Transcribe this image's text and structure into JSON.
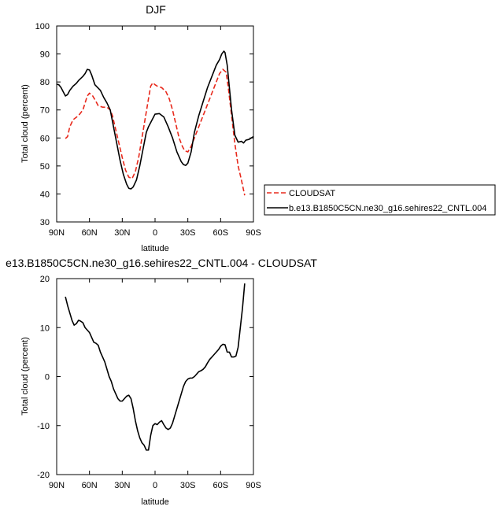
{
  "chart_data": [
    {
      "type": "line",
      "title": "DJF",
      "xlabel": "latitude",
      "ylabel": "Total cloud (percent)",
      "xlim": [
        -90,
        90
      ],
      "ylim": [
        30,
        100
      ],
      "x_ticks": [
        -90,
        -60,
        -30,
        0,
        30,
        60,
        90
      ],
      "x_tick_labels": [
        "90N",
        "60N",
        "30N",
        "0",
        "30S",
        "60S",
        "90S"
      ],
      "y_ticks": [
        30,
        40,
        50,
        60,
        70,
        80,
        90,
        100
      ],
      "y_tick_labels": [
        "30",
        "40",
        "50",
        "60",
        "70",
        "80",
        "90",
        "100"
      ],
      "grid": false,
      "legend_position": "right",
      "series": [
        {
          "name": "CLOUDSAT",
          "color": "#e8291c",
          "dash": "dashed",
          "points": [
            [
              -82,
              59.8
            ],
            [
              -80,
              60.5
            ],
            [
              -78,
              64
            ],
            [
              -75,
              66.5
            ],
            [
              -70,
              68
            ],
            [
              -66,
              70
            ],
            [
              -64,
              72.5
            ],
            [
              -62,
              75
            ],
            [
              -60,
              76
            ],
            [
              -57,
              75
            ],
            [
              -54,
              73
            ],
            [
              -52,
              71.5
            ],
            [
              -48,
              71
            ],
            [
              -44,
              71
            ],
            [
              -41,
              70
            ],
            [
              -39,
              68
            ],
            [
              -36,
              63
            ],
            [
              -33,
              58
            ],
            [
              -30,
              53
            ],
            [
              -27,
              48.5
            ],
            [
              -24,
              46
            ],
            [
              -21,
              45.5
            ],
            [
              -18,
              48
            ],
            [
              -15,
              53
            ],
            [
              -12,
              60
            ],
            [
              -9,
              67
            ],
            [
              -6,
              74
            ],
            [
              -4,
              78.5
            ],
            [
              -2,
              79.7
            ],
            [
              0,
              79
            ],
            [
              2,
              78.5
            ],
            [
              6,
              78
            ],
            [
              10,
              76.5
            ],
            [
              13,
              74
            ],
            [
              16,
              70
            ],
            [
              19,
              65
            ],
            [
              22,
              60
            ],
            [
              25,
              57
            ],
            [
              27,
              55.5
            ],
            [
              30,
              55
            ],
            [
              33,
              57
            ],
            [
              36,
              60
            ],
            [
              40,
              64
            ],
            [
              44,
              68
            ],
            [
              48,
              72
            ],
            [
              52,
              76
            ],
            [
              56,
              80
            ],
            [
              59,
              83
            ],
            [
              62,
              84.5
            ],
            [
              65,
              83.5
            ],
            [
              67,
              78
            ],
            [
              70,
              68
            ],
            [
              73,
              58
            ],
            [
              76,
              50
            ],
            [
              79,
              45
            ],
            [
              82,
              39.5
            ]
          ]
        },
        {
          "name": "b.e13.B1850C5CN.ne30_g16.sehires22_CNTL.004",
          "color": "#000000",
          "dash": "solid",
          "points": [
            [
              -90,
              79.2
            ],
            [
              -88,
              79
            ],
            [
              -86,
              78
            ],
            [
              -84,
              76.5
            ],
            [
              -82,
              75
            ],
            [
              -80,
              75.5
            ],
            [
              -78,
              77
            ],
            [
              -75,
              78.5
            ],
            [
              -72,
              79.5
            ],
            [
              -70,
              80.5
            ],
            [
              -66,
              82
            ],
            [
              -64,
              83
            ],
            [
              -62,
              84.5
            ],
            [
              -60,
              84.3
            ],
            [
              -58,
              82.5
            ],
            [
              -55,
              79
            ],
            [
              -50,
              77
            ],
            [
              -47,
              74.5
            ],
            [
              -44,
              72.5
            ],
            [
              -41,
              70
            ],
            [
              -38,
              64
            ],
            [
              -35,
              58
            ],
            [
              -32,
              52
            ],
            [
              -29,
              47
            ],
            [
              -26,
              43.5
            ],
            [
              -24,
              42
            ],
            [
              -22,
              41.8
            ],
            [
              -20,
              42.5
            ],
            [
              -17,
              45
            ],
            [
              -14,
              50
            ],
            [
              -11,
              56
            ],
            [
              -8,
              62
            ],
            [
              -6,
              64
            ],
            [
              -4,
              65.5
            ],
            [
              -2,
              67
            ],
            [
              0,
              68.5
            ],
            [
              4,
              68.7
            ],
            [
              8,
              67.5
            ],
            [
              12,
              64
            ],
            [
              16,
              60
            ],
            [
              20,
              55
            ],
            [
              24,
              51.5
            ],
            [
              26,
              50.5
            ],
            [
              28,
              50.2
            ],
            [
              30,
              51
            ],
            [
              33,
              55
            ],
            [
              36,
              62
            ],
            [
              40,
              68
            ],
            [
              44,
              73
            ],
            [
              48,
              78
            ],
            [
              52,
              82
            ],
            [
              56,
              86
            ],
            [
              59,
              88
            ],
            [
              61,
              90
            ],
            [
              63,
              91
            ],
            [
              64,
              90.5
            ],
            [
              66,
              86
            ],
            [
              68,
              78
            ],
            [
              70,
              70
            ],
            [
              73,
              61
            ],
            [
              76,
              58.5
            ],
            [
              79,
              58.8
            ],
            [
              81,
              58.2
            ],
            [
              83,
              59.2
            ],
            [
              86,
              59.5
            ],
            [
              88,
              60
            ],
            [
              90,
              60.5
            ]
          ]
        }
      ]
    },
    {
      "type": "line",
      "title": "e13.B1850C5CN.ne30_g16.sehires22_CNTL.004 - CLOUDSAT",
      "xlabel": "latitude",
      "ylabel": "Total cloud (percent)",
      "xlim": [
        -90,
        90
      ],
      "ylim": [
        -20,
        20
      ],
      "x_ticks": [
        -90,
        -60,
        -30,
        0,
        30,
        60,
        90
      ],
      "x_tick_labels": [
        "90N",
        "60N",
        "30N",
        "0",
        "30S",
        "60S",
        "90S"
      ],
      "y_ticks": [
        -20,
        -10,
        0,
        10,
        20
      ],
      "y_tick_labels": [
        "-20",
        "-10",
        "0",
        "10",
        "20"
      ],
      "grid": false,
      "series": [
        {
          "color": "#000000",
          "dash": "solid",
          "points": [
            [
              -82,
              16.3
            ],
            [
              -80,
              14.5
            ],
            [
              -78,
              13
            ],
            [
              -76,
              11.5
            ],
            [
              -74,
              10.5
            ],
            [
              -72,
              10.8
            ],
            [
              -70,
              11.5
            ],
            [
              -68,
              11.3
            ],
            [
              -66,
              11
            ],
            [
              -64,
              10
            ],
            [
              -62,
              9.5
            ],
            [
              -60,
              9
            ],
            [
              -58,
              8
            ],
            [
              -56,
              7
            ],
            [
              -54,
              6.8
            ],
            [
              -52,
              6.4
            ],
            [
              -50,
              5
            ],
            [
              -48,
              4
            ],
            [
              -46,
              3
            ],
            [
              -44,
              1.5
            ],
            [
              -42,
              0
            ],
            [
              -40,
              -1
            ],
            [
              -38,
              -2.5
            ],
            [
              -36,
              -3.5
            ],
            [
              -34,
              -4.5
            ],
            [
              -32,
              -5
            ],
            [
              -30,
              -5
            ],
            [
              -28,
              -4.5
            ],
            [
              -26,
              -4
            ],
            [
              -24,
              -3.8
            ],
            [
              -22,
              -4.5
            ],
            [
              -20,
              -6.5
            ],
            [
              -18,
              -9
            ],
            [
              -16,
              -11
            ],
            [
              -14,
              -12.5
            ],
            [
              -12,
              -13.5
            ],
            [
              -10,
              -14
            ],
            [
              -8,
              -15
            ],
            [
              -6,
              -15
            ],
            [
              -4,
              -12
            ],
            [
              -2,
              -10
            ],
            [
              0,
              -9.6
            ],
            [
              2,
              -9.8
            ],
            [
              4,
              -9.3
            ],
            [
              6,
              -9
            ],
            [
              8,
              -9.8
            ],
            [
              10,
              -10.5
            ],
            [
              12,
              -10.8
            ],
            [
              14,
              -10.5
            ],
            [
              16,
              -9.5
            ],
            [
              18,
              -8
            ],
            [
              20,
              -6.5
            ],
            [
              22,
              -5
            ],
            [
              24,
              -3.5
            ],
            [
              26,
              -2
            ],
            [
              28,
              -1
            ],
            [
              30,
              -0.5
            ],
            [
              32,
              -0.3
            ],
            [
              34,
              -0.3
            ],
            [
              36,
              0
            ],
            [
              38,
              0.5
            ],
            [
              40,
              1
            ],
            [
              42,
              1.2
            ],
            [
              44,
              1.5
            ],
            [
              46,
              2
            ],
            [
              48,
              2.8
            ],
            [
              50,
              3.5
            ],
            [
              52,
              4
            ],
            [
              54,
              4.5
            ],
            [
              56,
              5
            ],
            [
              58,
              5.5
            ],
            [
              60,
              6.2
            ],
            [
              62,
              6.6
            ],
            [
              64,
              6.5
            ],
            [
              66,
              5
            ],
            [
              68,
              5
            ],
            [
              70,
              4
            ],
            [
              72,
              4
            ],
            [
              74,
              4.2
            ],
            [
              76,
              6
            ],
            [
              78,
              10
            ],
            [
              80,
              14
            ],
            [
              82,
              19
            ]
          ]
        }
      ]
    }
  ]
}
